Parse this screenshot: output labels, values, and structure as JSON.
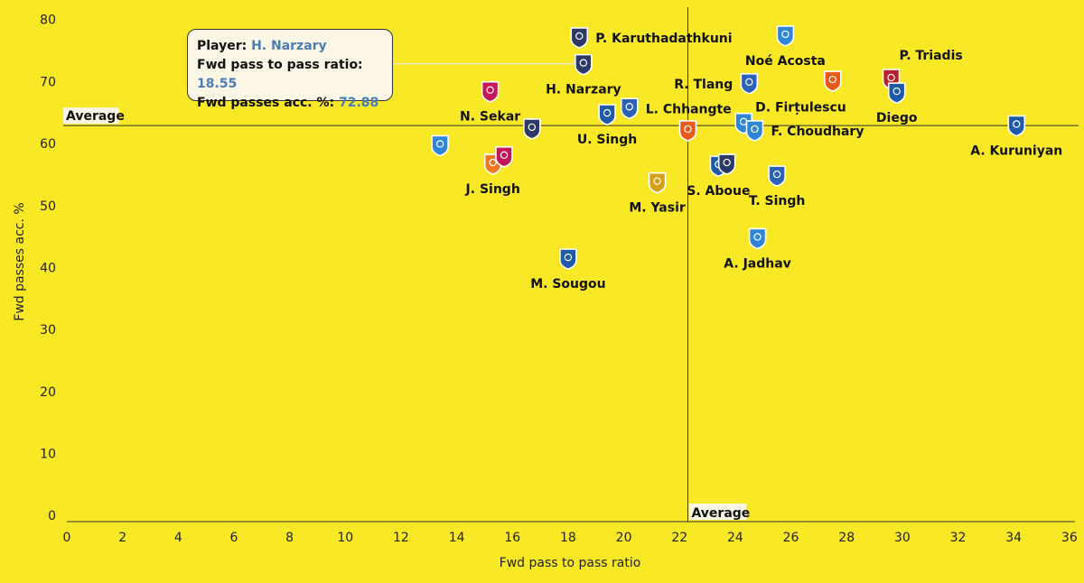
{
  "colors": {
    "background": "#f8e825",
    "text": "#111111",
    "tooltip_value": "#4a7cb5",
    "tooltip_bg": "#fbf6e6"
  },
  "tooltip": {
    "player_label": "Player:",
    "player_value": "H. Narzary",
    "ratio_label": "Fwd pass to pass ratio:",
    "ratio_value": "18.55",
    "acc_label": "Fwd passes acc. %:",
    "acc_value": "72.88"
  },
  "chart_data": {
    "type": "scatter",
    "xlabel": "Fwd pass to pass ratio",
    "ylabel": "Fwd passes acc. %",
    "xlim": [
      0,
      36.2
    ],
    "ylim": [
      -1,
      82
    ],
    "xticks": [
      0,
      2,
      4,
      6,
      8,
      10,
      12,
      14,
      16,
      18,
      20,
      22,
      24,
      26,
      28,
      30,
      32,
      34,
      36
    ],
    "yticks": [
      0,
      10,
      20,
      30,
      40,
      50,
      60,
      70,
      80
    ],
    "grid": false,
    "reference_lines": {
      "x_average": {
        "value": 22.3,
        "label": "Average"
      },
      "y_average": {
        "value": 62.9,
        "label": "Average"
      }
    },
    "points": [
      {
        "label": "P. Karuthadathkuni",
        "x": 18.4,
        "y": 77.2,
        "club_color": "#2e3a66",
        "label_side": "right"
      },
      {
        "label": "H. Narzary",
        "x": 18.55,
        "y": 72.88,
        "club_color": "#2e3a66",
        "label_side": "below"
      },
      {
        "label": "N. Sekar",
        "x": 15.2,
        "y": 68.5,
        "club_color": "#c2185b",
        "label_side": "below"
      },
      {
        "label": "",
        "x": 16.7,
        "y": 62.5,
        "club_color": "#2e3a66",
        "label_side": "none"
      },
      {
        "label": "U. Singh",
        "x": 19.4,
        "y": 64.8,
        "club_color": "#1e5aa8",
        "label_side": "below"
      },
      {
        "label": "L. Chhangte",
        "x": 20.2,
        "y": 65.8,
        "club_color": "#2a62b8",
        "label_side": "right"
      },
      {
        "label": "",
        "x": 13.4,
        "y": 59.8,
        "club_color": "#2f86d6",
        "label_side": "none"
      },
      {
        "label": "J. Singh",
        "x": 15.3,
        "y": 56.8,
        "club_color": "#f07820",
        "label_side": "below"
      },
      {
        "label": "",
        "x": 15.7,
        "y": 58.0,
        "club_color": "#c2185b",
        "label_side": "none"
      },
      {
        "label": "M. Sougou",
        "x": 18.0,
        "y": 41.5,
        "club_color": "#1e5aa8",
        "label_side": "below"
      },
      {
        "label": "M. Yasir",
        "x": 21.2,
        "y": 53.8,
        "club_color": "#d4a017",
        "label_side": "below"
      },
      {
        "label": "",
        "x": 22.3,
        "y": 62.2,
        "club_color": "#e85a1c",
        "label_side": "none"
      },
      {
        "label": "Noé Acosta",
        "x": 25.8,
        "y": 77.5,
        "club_color": "#2f86d6",
        "label_side": "below"
      },
      {
        "label": "R. Tlang",
        "x": 24.5,
        "y": 69.8,
        "club_color": "#2a62b8",
        "label_side": "left"
      },
      {
        "label": "D. Firțulescu",
        "x": 24.3,
        "y": 63.4,
        "club_color": "#2f86d6",
        "label_side": "right-up"
      },
      {
        "label": "F. Choudhary",
        "x": 24.7,
        "y": 62.2,
        "club_color": "#2f86d6",
        "label_side": "right"
      },
      {
        "label": "",
        "x": 27.5,
        "y": 70.2,
        "club_color": "#e85a1c",
        "label_side": "none"
      },
      {
        "label": "P. Triadis",
        "x": 29.6,
        "y": 70.5,
        "club_color": "#b8222f",
        "label_side": "above-right"
      },
      {
        "label": "Diego",
        "x": 29.8,
        "y": 68.3,
        "club_color": "#1e5aa8",
        "label_side": "below"
      },
      {
        "label": "S. Aboue",
        "x": 23.4,
        "y": 56.5,
        "club_color": "#1e5aa8",
        "label_side": "below"
      },
      {
        "label": "",
        "x": 23.7,
        "y": 56.8,
        "club_color": "#2e3a66",
        "label_side": "none"
      },
      {
        "label": "T. Singh",
        "x": 25.5,
        "y": 54.9,
        "club_color": "#2a62b8",
        "label_side": "below"
      },
      {
        "label": "A. Jadhav",
        "x": 24.8,
        "y": 44.8,
        "club_color": "#2f86d6",
        "label_side": "below"
      },
      {
        "label": "A. Kuruniyan",
        "x": 34.1,
        "y": 63.0,
        "club_color": "#1e5aa8",
        "label_side": "below"
      }
    ]
  }
}
